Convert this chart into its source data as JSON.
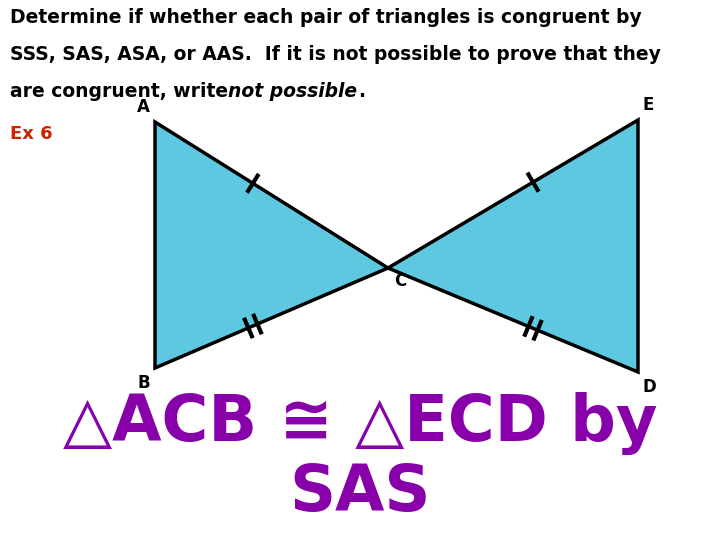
{
  "title_lines": [
    "Determine if whether each pair of triangles is congruent by",
    "SSS, SAS, ASA, or AAS.  If it is not possible to prove that they",
    "are congruent, write not possible."
  ],
  "ex_label": "Ex 6",
  "ex_color": "#cc2200",
  "fill_color": "#5ec8e0",
  "edge_color": "#000000",
  "answer_line1": "△ACB ≅ △ECD by",
  "answer_line2": "SAS",
  "answer_color": "#8800aa",
  "bg_color": "#ffffff"
}
